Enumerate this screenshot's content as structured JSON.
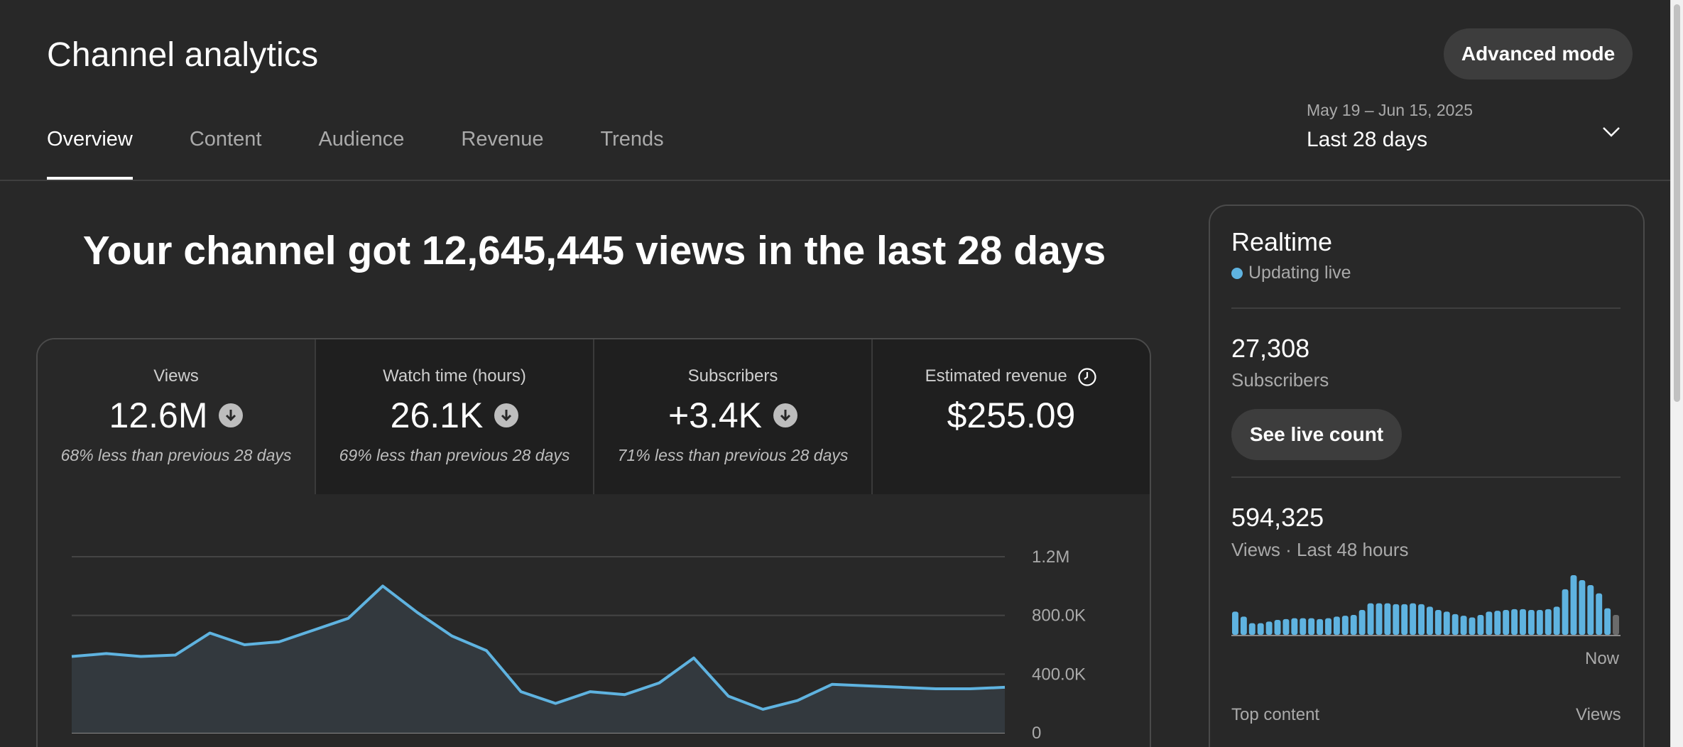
{
  "header": {
    "title": "Channel analytics",
    "advanced_mode_label": "Advanced mode",
    "tabs": [
      {
        "label": "Overview",
        "active": true
      },
      {
        "label": "Content",
        "active": false
      },
      {
        "label": "Audience",
        "active": false
      },
      {
        "label": "Revenue",
        "active": false
      },
      {
        "label": "Trends",
        "active": false
      }
    ],
    "date_range": "May 19 – Jun 15, 2025",
    "date_label": "Last 28 days"
  },
  "main": {
    "headline": "Your channel got 12,645,445 views in the last 28 days",
    "metrics": [
      {
        "label": "Views",
        "value": "12.6M",
        "sub": "68% less than previous 28 days",
        "trend": "down"
      },
      {
        "label": "Watch time (hours)",
        "value": "26.1K",
        "sub": "69% less than previous 28 days",
        "trend": "down"
      },
      {
        "label": "Subscribers",
        "value": "+3.4K",
        "sub": "71% less than previous 28 days",
        "trend": "down"
      },
      {
        "label": "Estimated revenue",
        "value": "$255.09",
        "sub": "",
        "trend": "none"
      }
    ]
  },
  "chart_data": {
    "type": "area",
    "title": "",
    "xlabel": "",
    "ylabel": "",
    "y_ticks": [
      "1.2M",
      "800.0K",
      "400.0K",
      "0"
    ],
    "ylim": [
      0,
      1200000
    ],
    "x": [
      1,
      2,
      3,
      4,
      5,
      6,
      7,
      8,
      9,
      10,
      11,
      12,
      13,
      14,
      15,
      16,
      17,
      18,
      19,
      20,
      21,
      22,
      23,
      24,
      25,
      26,
      27,
      28
    ],
    "values": [
      520000,
      540000,
      520000,
      530000,
      680000,
      600000,
      620000,
      700000,
      780000,
      1000000,
      820000,
      660000,
      560000,
      280000,
      200000,
      280000,
      260000,
      340000,
      510000,
      250000,
      160000,
      220000,
      330000,
      320000,
      310000,
      300000,
      300000,
      310000
    ],
    "grid": true,
    "color": "#5fb3e0"
  },
  "realtime": {
    "title": "Realtime",
    "status": "Updating live",
    "subscribers_count": "27,308",
    "subscribers_label": "Subscribers",
    "live_count_label": "See live count",
    "views_count": "594,325",
    "views_label": "Views · Last 48 hours",
    "now_label": "Now",
    "top_content_label": "Top content",
    "views_col_label": "Views",
    "bar_color": "#5fb3e0",
    "hourly_views": [
      28,
      22,
      14,
      14,
      16,
      18,
      19,
      20,
      20,
      20,
      19,
      20,
      22,
      23,
      24,
      30,
      38,
      38,
      38,
      37,
      37,
      38,
      37,
      34,
      30,
      28,
      25,
      23,
      21,
      24,
      28,
      29,
      30,
      31,
      31,
      30,
      30,
      31,
      34,
      55,
      72,
      66,
      60,
      50,
      32,
      24
    ]
  },
  "colors": {
    "background": "#282828",
    "accent": "#5fb3e0",
    "divider": "#3f3f3f"
  }
}
